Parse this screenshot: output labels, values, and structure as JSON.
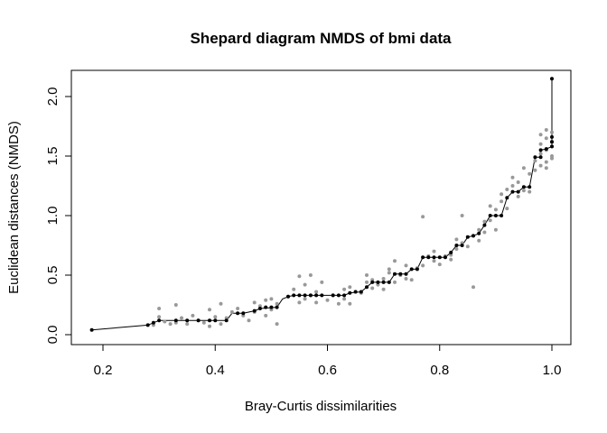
{
  "chart_data": {
    "type": "scatter",
    "title": "Shepard diagram NMDS of bmi data",
    "xlabel": "Bray-Curtis dissimilarities",
    "ylabel": "Euclidean distances (NMDS)",
    "xlim": [
      0.15,
      1.02
    ],
    "ylim": [
      -0.08,
      2.25
    ],
    "xticks": [
      0.2,
      0.4,
      0.6,
      0.8,
      1.0
    ],
    "xtick_labels": [
      "0.2",
      "0.4",
      "0.6",
      "0.8",
      "1.0"
    ],
    "yticks": [
      0.0,
      0.5,
      1.0,
      1.5,
      2.0
    ],
    "ytick_labels": [
      "0.0",
      "0.5",
      "1.0",
      "1.5",
      "2.0"
    ],
    "grid": false,
    "legend": "none",
    "colors": {
      "observed": "#999999",
      "fitted": "#000000",
      "step_line": "#000000"
    },
    "series": [
      {
        "values_type": "observed",
        "color": "#999999",
        "points": [
          [
            0.29,
            0.08
          ],
          [
            0.3,
            0.15
          ],
          [
            0.3,
            0.22
          ],
          [
            0.31,
            0.11
          ],
          [
            0.32,
            0.09
          ],
          [
            0.33,
            0.25
          ],
          [
            0.33,
            0.1
          ],
          [
            0.34,
            0.14
          ],
          [
            0.35,
            0.09
          ],
          [
            0.36,
            0.16
          ],
          [
            0.37,
            0.12
          ],
          [
            0.38,
            0.1
          ],
          [
            0.39,
            0.21
          ],
          [
            0.39,
            0.07
          ],
          [
            0.4,
            0.15
          ],
          [
            0.41,
            0.09
          ],
          [
            0.41,
            0.26
          ],
          [
            0.42,
            0.14
          ],
          [
            0.43,
            0.19
          ],
          [
            0.44,
            0.22
          ],
          [
            0.45,
            0.16
          ],
          [
            0.46,
            0.12
          ],
          [
            0.47,
            0.19
          ],
          [
            0.47,
            0.27
          ],
          [
            0.48,
            0.24
          ],
          [
            0.49,
            0.29
          ],
          [
            0.49,
            0.16
          ],
          [
            0.5,
            0.21
          ],
          [
            0.5,
            0.3
          ],
          [
            0.51,
            0.09
          ],
          [
            0.51,
            0.26
          ],
          [
            0.53,
            0.32
          ],
          [
            0.54,
            0.38
          ],
          [
            0.55,
            0.49
          ],
          [
            0.55,
            0.27
          ],
          [
            0.56,
            0.3
          ],
          [
            0.56,
            0.42
          ],
          [
            0.57,
            0.33
          ],
          [
            0.57,
            0.5
          ],
          [
            0.58,
            0.36
          ],
          [
            0.58,
            0.27
          ],
          [
            0.59,
            0.44
          ],
          [
            0.6,
            0.29
          ],
          [
            0.61,
            0.33
          ],
          [
            0.62,
            0.26
          ],
          [
            0.63,
            0.38
          ],
          [
            0.63,
            0.3
          ],
          [
            0.64,
            0.26
          ],
          [
            0.64,
            0.4
          ],
          [
            0.65,
            0.36
          ],
          [
            0.66,
            0.35
          ],
          [
            0.67,
            0.44
          ],
          [
            0.67,
            0.5
          ],
          [
            0.68,
            0.39
          ],
          [
            0.68,
            0.46
          ],
          [
            0.69,
            0.42
          ],
          [
            0.7,
            0.38
          ],
          [
            0.7,
            0.47
          ],
          [
            0.71,
            0.52
          ],
          [
            0.71,
            0.55
          ],
          [
            0.72,
            0.44
          ],
          [
            0.72,
            0.62
          ],
          [
            0.73,
            0.5
          ],
          [
            0.74,
            0.47
          ],
          [
            0.74,
            0.58
          ],
          [
            0.75,
            0.46
          ],
          [
            0.76,
            0.56
          ],
          [
            0.77,
            0.58
          ],
          [
            0.77,
            0.99
          ],
          [
            0.78,
            0.66
          ],
          [
            0.79,
            0.62
          ],
          [
            0.79,
            0.7
          ],
          [
            0.8,
            0.59
          ],
          [
            0.81,
            0.66
          ],
          [
            0.82,
            0.67
          ],
          [
            0.82,
            0.63
          ],
          [
            0.83,
            0.72
          ],
          [
            0.83,
            0.8
          ],
          [
            0.84,
            0.77
          ],
          [
            0.84,
            1.0
          ],
          [
            0.85,
            0.74
          ],
          [
            0.86,
            0.4
          ],
          [
            0.86,
            0.83
          ],
          [
            0.87,
            0.79
          ],
          [
            0.87,
            0.88
          ],
          [
            0.88,
            0.95
          ],
          [
            0.88,
            0.86
          ],
          [
            0.89,
            0.96
          ],
          [
            0.89,
            1.08
          ],
          [
            0.9,
            1.05
          ],
          [
            0.9,
            0.88
          ],
          [
            0.91,
            1.18
          ],
          [
            0.91,
            1.12
          ],
          [
            0.92,
            1.06
          ],
          [
            0.92,
            1.22
          ],
          [
            0.93,
            1.25
          ],
          [
            0.93,
            1.32
          ],
          [
            0.94,
            1.16
          ],
          [
            0.94,
            1.28
          ],
          [
            0.95,
            1.21
          ],
          [
            0.95,
            1.4
          ],
          [
            0.96,
            1.35
          ],
          [
            0.96,
            1.2
          ],
          [
            0.97,
            1.46
          ],
          [
            0.97,
            1.38
          ],
          [
            0.98,
            1.52
          ],
          [
            0.98,
            1.42
          ],
          [
            0.98,
            1.6
          ],
          [
            0.99,
            1.65
          ],
          [
            0.99,
            1.45
          ],
          [
            0.99,
            1.55
          ],
          [
            1.0,
            1.7
          ],
          [
            1.0,
            1.62
          ],
          [
            1.0,
            1.5
          ],
          [
            0.99,
            1.72
          ],
          [
            0.98,
            1.68
          ],
          [
            1.0,
            1.58
          ],
          [
            0.99,
            1.4
          ],
          [
            1.0,
            1.48
          ]
        ]
      },
      {
        "values_type": "fitted",
        "color": "#000000",
        "points": [
          [
            0.18,
            0.04
          ],
          [
            0.28,
            0.08
          ],
          [
            0.29,
            0.1
          ],
          [
            0.3,
            0.12
          ],
          [
            0.33,
            0.12
          ],
          [
            0.35,
            0.12
          ],
          [
            0.37,
            0.12
          ],
          [
            0.39,
            0.12
          ],
          [
            0.4,
            0.12
          ],
          [
            0.42,
            0.12
          ],
          [
            0.44,
            0.18
          ],
          [
            0.45,
            0.18
          ],
          [
            0.47,
            0.2
          ],
          [
            0.48,
            0.22
          ],
          [
            0.49,
            0.23
          ],
          [
            0.5,
            0.23
          ],
          [
            0.51,
            0.23
          ],
          [
            0.53,
            0.32
          ],
          [
            0.54,
            0.33
          ],
          [
            0.55,
            0.33
          ],
          [
            0.56,
            0.33
          ],
          [
            0.57,
            0.33
          ],
          [
            0.58,
            0.33
          ],
          [
            0.59,
            0.33
          ],
          [
            0.61,
            0.33
          ],
          [
            0.62,
            0.33
          ],
          [
            0.63,
            0.33
          ],
          [
            0.64,
            0.35
          ],
          [
            0.65,
            0.36
          ],
          [
            0.66,
            0.36
          ],
          [
            0.67,
            0.4
          ],
          [
            0.68,
            0.44
          ],
          [
            0.69,
            0.44
          ],
          [
            0.7,
            0.44
          ],
          [
            0.71,
            0.44
          ],
          [
            0.72,
            0.51
          ],
          [
            0.73,
            0.51
          ],
          [
            0.74,
            0.51
          ],
          [
            0.75,
            0.55
          ],
          [
            0.76,
            0.55
          ],
          [
            0.77,
            0.65
          ],
          [
            0.78,
            0.65
          ],
          [
            0.79,
            0.65
          ],
          [
            0.8,
            0.65
          ],
          [
            0.81,
            0.65
          ],
          [
            0.82,
            0.69
          ],
          [
            0.83,
            0.75
          ],
          [
            0.84,
            0.75
          ],
          [
            0.85,
            0.82
          ],
          [
            0.86,
            0.83
          ],
          [
            0.87,
            0.85
          ],
          [
            0.88,
            0.92
          ],
          [
            0.89,
            1.0
          ],
          [
            0.9,
            1.0
          ],
          [
            0.91,
            1.0
          ],
          [
            0.92,
            1.15
          ],
          [
            0.93,
            1.2
          ],
          [
            0.94,
            1.2
          ],
          [
            0.95,
            1.24
          ],
          [
            0.96,
            1.24
          ],
          [
            0.97,
            1.49
          ],
          [
            0.98,
            1.49
          ],
          [
            0.98,
            1.55
          ],
          [
            0.99,
            1.56
          ],
          [
            1.0,
            1.58
          ],
          [
            1.0,
            1.62
          ],
          [
            1.0,
            1.66
          ],
          [
            1.0,
            2.15
          ]
        ]
      }
    ],
    "step_line": [
      [
        0.18,
        0.04
      ],
      [
        0.28,
        0.08
      ],
      [
        0.29,
        0.1
      ],
      [
        0.3,
        0.12
      ],
      [
        0.42,
        0.12
      ],
      [
        0.43,
        0.18
      ],
      [
        0.45,
        0.18
      ],
      [
        0.47,
        0.2
      ],
      [
        0.48,
        0.22
      ],
      [
        0.51,
        0.23
      ],
      [
        0.52,
        0.3
      ],
      [
        0.53,
        0.32
      ],
      [
        0.54,
        0.33
      ],
      [
        0.63,
        0.33
      ],
      [
        0.64,
        0.35
      ],
      [
        0.66,
        0.36
      ],
      [
        0.67,
        0.4
      ],
      [
        0.68,
        0.44
      ],
      [
        0.71,
        0.44
      ],
      [
        0.72,
        0.51
      ],
      [
        0.74,
        0.51
      ],
      [
        0.75,
        0.55
      ],
      [
        0.76,
        0.55
      ],
      [
        0.77,
        0.65
      ],
      [
        0.81,
        0.65
      ],
      [
        0.82,
        0.69
      ],
      [
        0.83,
        0.75
      ],
      [
        0.84,
        0.75
      ],
      [
        0.85,
        0.82
      ],
      [
        0.86,
        0.83
      ],
      [
        0.87,
        0.85
      ],
      [
        0.88,
        0.92
      ],
      [
        0.89,
        1.0
      ],
      [
        0.91,
        1.0
      ],
      [
        0.92,
        1.15
      ],
      [
        0.93,
        1.2
      ],
      [
        0.94,
        1.2
      ],
      [
        0.95,
        1.24
      ],
      [
        0.96,
        1.24
      ],
      [
        0.97,
        1.49
      ],
      [
        0.98,
        1.49
      ],
      [
        0.98,
        1.55
      ],
      [
        0.99,
        1.56
      ],
      [
        1.0,
        1.58
      ],
      [
        1.0,
        1.66
      ],
      [
        1.0,
        2.15
      ]
    ]
  }
}
